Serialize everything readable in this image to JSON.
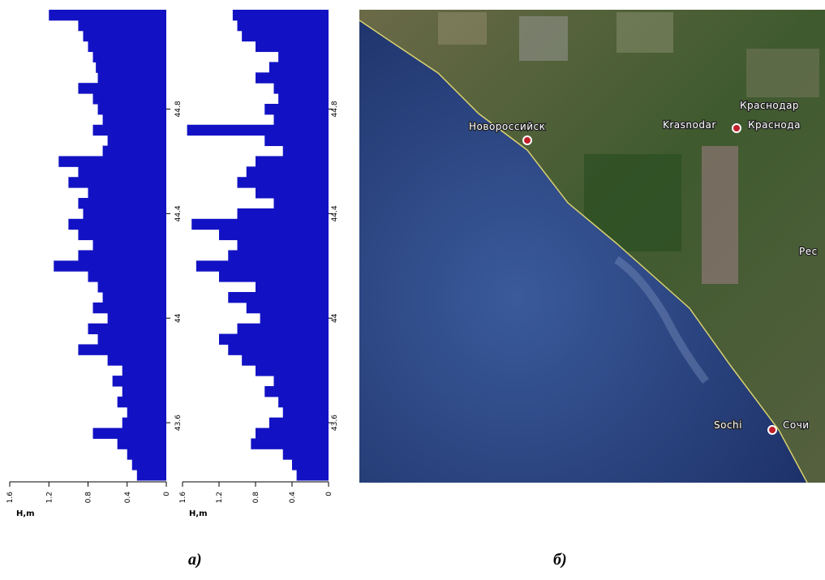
{
  "chart_data": [
    {
      "type": "bar",
      "orientation": "horizontal",
      "color": "#1212c4",
      "x_label": "H,m",
      "xlim": [
        1.6,
        0
      ],
      "xticks": [
        1.6,
        1.2,
        0.8,
        0.4,
        0
      ],
      "ylim": [
        43.38,
        45.18
      ],
      "yticks": [
        44.8,
        44.4,
        44,
        43.6
      ],
      "x": [
        45.16,
        45.12,
        45.08,
        45.04,
        45.0,
        44.96,
        44.92,
        44.88,
        44.84,
        44.8,
        44.76,
        44.72,
        44.68,
        44.64,
        44.6,
        44.56,
        44.52,
        44.48,
        44.44,
        44.4,
        44.36,
        44.32,
        44.28,
        44.24,
        44.2,
        44.16,
        44.12,
        44.08,
        44.04,
        44.0,
        43.96,
        43.92,
        43.88,
        43.84,
        43.8,
        43.76,
        43.72,
        43.68,
        43.64,
        43.6,
        43.56,
        43.52,
        43.48,
        43.44,
        43.4
      ],
      "values": [
        1.2,
        0.9,
        0.85,
        0.8,
        0.75,
        0.72,
        0.7,
        0.9,
        0.75,
        0.7,
        0.65,
        0.75,
        0.6,
        0.65,
        1.1,
        0.9,
        1.0,
        0.8,
        0.9,
        0.85,
        1.0,
        0.9,
        0.75,
        0.9,
        1.15,
        0.8,
        0.7,
        0.65,
        0.75,
        0.6,
        0.8,
        0.7,
        0.9,
        0.6,
        0.45,
        0.55,
        0.45,
        0.5,
        0.4,
        0.45,
        0.75,
        0.5,
        0.4,
        0.35,
        0.3
      ]
    },
    {
      "type": "bar",
      "orientation": "horizontal",
      "color": "#1212c4",
      "x_label": "H,m",
      "xlim": [
        1.6,
        0
      ],
      "xticks": [
        1.6,
        1.2,
        0.8,
        0.4,
        0
      ],
      "ylim": [
        43.38,
        45.18
      ],
      "yticks": [
        44.8,
        44.4,
        44,
        43.6
      ],
      "x": [
        45.16,
        45.12,
        45.08,
        45.04,
        45.0,
        44.96,
        44.92,
        44.88,
        44.84,
        44.8,
        44.76,
        44.72,
        44.68,
        44.64,
        44.6,
        44.56,
        44.52,
        44.48,
        44.44,
        44.4,
        44.36,
        44.32,
        44.28,
        44.24,
        44.2,
        44.16,
        44.12,
        44.08,
        44.04,
        44.0,
        43.96,
        43.92,
        43.88,
        43.84,
        43.8,
        43.76,
        43.72,
        43.68,
        43.64,
        43.6,
        43.56,
        43.52,
        43.48,
        43.44,
        43.4
      ],
      "values": [
        1.05,
        1.0,
        0.95,
        0.8,
        0.55,
        0.65,
        0.8,
        0.6,
        0.55,
        0.7,
        0.6,
        1.55,
        0.7,
        0.5,
        0.8,
        0.9,
        1.0,
        0.8,
        0.6,
        1.0,
        1.5,
        1.2,
        1.0,
        1.1,
        1.45,
        1.2,
        0.8,
        1.1,
        0.9,
        0.75,
        1.0,
        1.2,
        1.1,
        0.95,
        0.8,
        0.6,
        0.7,
        0.55,
        0.5,
        0.65,
        0.8,
        0.85,
        0.5,
        0.4,
        0.35
      ]
    }
  ],
  "map": {
    "labels": [
      "Краснодар",
      "Новороссийск",
      "Krasnodar",
      "Краснода",
      "Рес",
      "Sochi",
      "Сочи"
    ]
  },
  "captions": [
    "а)",
    "б)"
  ]
}
